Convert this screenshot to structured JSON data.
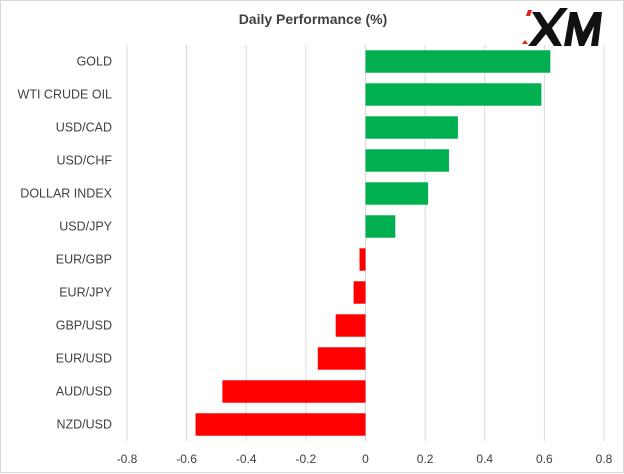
{
  "chart_data": {
    "type": "bar",
    "orientation": "horizontal",
    "title": "Daily Performance (%)",
    "categories": [
      "GOLD",
      "WTI CRUDE OIL",
      "USD/CAD",
      "USD/CHF",
      "DOLLAR INDEX",
      "USD/JPY",
      "EUR/GBP",
      "EUR/JPY",
      "GBP/USD",
      "EUR/USD",
      "AUD/USD",
      "NZD/USD"
    ],
    "values": [
      0.62,
      0.59,
      0.31,
      0.28,
      0.21,
      0.1,
      -0.02,
      -0.04,
      -0.1,
      -0.16,
      -0.48,
      -0.57
    ],
    "xlim": [
      -0.8,
      0.8
    ],
    "xticks": [
      -0.8,
      -0.6,
      -0.4,
      -0.2,
      0,
      0.2,
      0.4,
      0.6,
      0.8
    ],
    "xtick_labels": [
      "-0.8",
      "-0.6",
      "-0.4",
      "-0.2",
      "0",
      "0.2",
      "0.4",
      "0.6",
      "0.8"
    ],
    "grid": "vertical gridlines",
    "legend": "none",
    "colors": {
      "positive": "#00b050",
      "negative": "#ff0000",
      "grid": "#d9d9d9",
      "text": "#404040"
    }
  },
  "logo": {
    "text": "XM",
    "color": "#e2231a",
    "text_color": "#000000"
  }
}
